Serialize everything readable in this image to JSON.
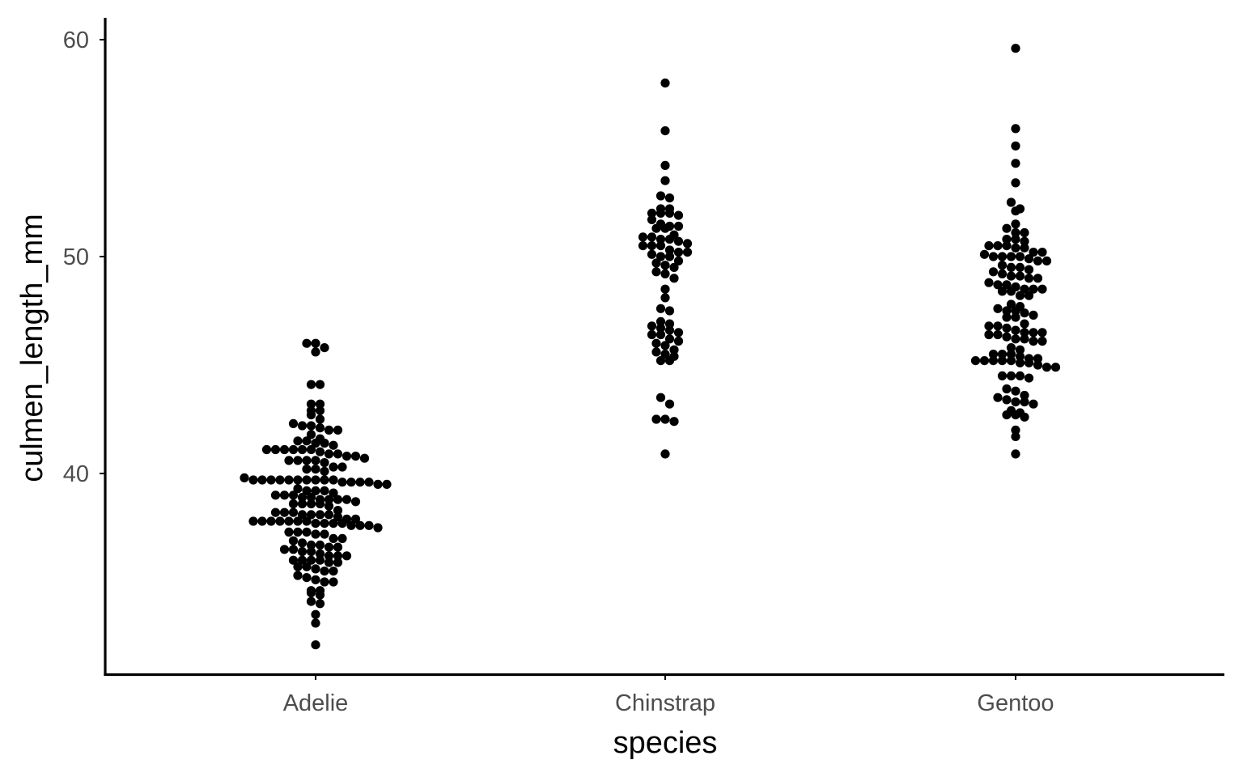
{
  "chart_data": {
    "type": "scatter",
    "subtype": "beeswarm",
    "title": "",
    "xlabel": "species",
    "ylabel": "culmen_length_mm",
    "categories": [
      "Adelie",
      "Chinstrap",
      "Gentoo"
    ],
    "y_ticks": [
      40,
      50,
      60
    ],
    "ylim": [
      30.9,
      61.2
    ],
    "grid": false,
    "legend": "none",
    "point_color": "#000000",
    "series": [
      {
        "category": "Adelie",
        "values": [
          46.0,
          46.0,
          45.8,
          45.6,
          44.1,
          44.1,
          43.2,
          43.2,
          42.9,
          42.9,
          42.7,
          42.5,
          42.3,
          42.2,
          42.2,
          42.1,
          42.0,
          42.0,
          41.8,
          41.6,
          41.5,
          41.5,
          41.4,
          41.4,
          41.3,
          41.1,
          41.1,
          41.1,
          41.1,
          41.1,
          41.1,
          41.0,
          40.9,
          40.9,
          40.8,
          40.8,
          40.7,
          40.6,
          40.6,
          40.6,
          40.6,
          40.5,
          40.3,
          40.3,
          40.2,
          40.2,
          40.1,
          39.8,
          39.7,
          39.7,
          39.7,
          39.7,
          39.7,
          39.7,
          39.7,
          39.7,
          39.7,
          39.7,
          39.6,
          39.6,
          39.6,
          39.6,
          39.5,
          39.5,
          39.3,
          39.2,
          39.2,
          39.2,
          39.1,
          39.0,
          39.0,
          39.0,
          38.9,
          38.9,
          38.8,
          38.8,
          38.8,
          38.8,
          38.7,
          38.6,
          38.6,
          38.6,
          38.6,
          38.5,
          38.3,
          38.2,
          38.2,
          38.2,
          38.1,
          38.1,
          38.1,
          38.1,
          38.0,
          37.9,
          37.9,
          37.8,
          37.8,
          37.8,
          37.8,
          37.8,
          37.8,
          37.8,
          37.7,
          37.7,
          37.7,
          37.7,
          37.6,
          37.6,
          37.6,
          37.5,
          37.3,
          37.3,
          37.3,
          37.2,
          37.2,
          37.0,
          37.0,
          36.9,
          36.8,
          36.7,
          36.7,
          36.6,
          36.6,
          36.5,
          36.5,
          36.4,
          36.4,
          36.3,
          36.2,
          36.2,
          36.2,
          36.0,
          36.0,
          36.0,
          36.0,
          35.9,
          35.9,
          35.7,
          35.7,
          35.6,
          35.5,
          35.5,
          35.3,
          35.2,
          35.1,
          35.0,
          35.0,
          34.6,
          34.6,
          34.5,
          34.4,
          34.1,
          34.0,
          33.5,
          33.1,
          32.1
        ]
      },
      {
        "category": "Chinstrap",
        "values": [
          58.0,
          55.8,
          54.2,
          53.5,
          52.8,
          52.7,
          52.2,
          52.2,
          52.0,
          52.0,
          52.0,
          51.9,
          51.7,
          51.5,
          51.4,
          51.4,
          51.3,
          51.3,
          51.0,
          50.9,
          50.9,
          50.8,
          50.8,
          50.7,
          50.6,
          50.5,
          50.5,
          50.5,
          50.3,
          50.2,
          50.2,
          50.1,
          50.0,
          50.0,
          49.8,
          49.7,
          49.6,
          49.5,
          49.3,
          49.2,
          49.0,
          48.5,
          48.1,
          47.6,
          47.5,
          47.0,
          46.9,
          46.8,
          46.7,
          46.6,
          46.5,
          46.4,
          46.4,
          46.2,
          46.1,
          46.0,
          45.9,
          45.7,
          45.6,
          45.5,
          45.4,
          45.2,
          45.2,
          43.5,
          43.2,
          42.5,
          42.5,
          42.4,
          40.9
        ]
      },
      {
        "category": "Gentoo",
        "values": [
          59.6,
          55.9,
          55.1,
          54.3,
          53.4,
          52.5,
          52.2,
          52.1,
          51.5,
          51.3,
          51.1,
          51.1,
          50.8,
          50.8,
          50.7,
          50.5,
          50.5,
          50.5,
          50.4,
          50.4,
          50.2,
          50.2,
          50.1,
          50.0,
          50.0,
          50.0,
          50.0,
          49.9,
          49.8,
          49.8,
          49.6,
          49.5,
          49.5,
          49.4,
          49.3,
          49.2,
          49.1,
          49.1,
          49.0,
          49.0,
          48.8,
          48.7,
          48.7,
          48.6,
          48.5,
          48.5,
          48.5,
          48.4,
          48.4,
          48.2,
          48.2,
          47.8,
          47.7,
          47.6,
          47.5,
          47.5,
          47.4,
          47.3,
          47.2,
          47.2,
          46.9,
          46.8,
          46.8,
          46.7,
          46.6,
          46.5,
          46.5,
          46.5,
          46.4,
          46.4,
          46.3,
          46.2,
          46.2,
          46.1,
          46.1,
          45.8,
          45.7,
          45.5,
          45.5,
          45.5,
          45.4,
          45.3,
          45.3,
          45.2,
          45.2,
          45.2,
          45.2,
          45.2,
          45.1,
          45.1,
          45.0,
          44.9,
          44.9,
          44.5,
          44.5,
          44.5,
          44.4,
          43.9,
          43.8,
          43.6,
          43.5,
          43.4,
          43.3,
          43.3,
          43.2,
          42.9,
          42.8,
          42.7,
          42.7,
          42.6,
          42.0,
          41.7,
          40.9
        ]
      }
    ]
  }
}
